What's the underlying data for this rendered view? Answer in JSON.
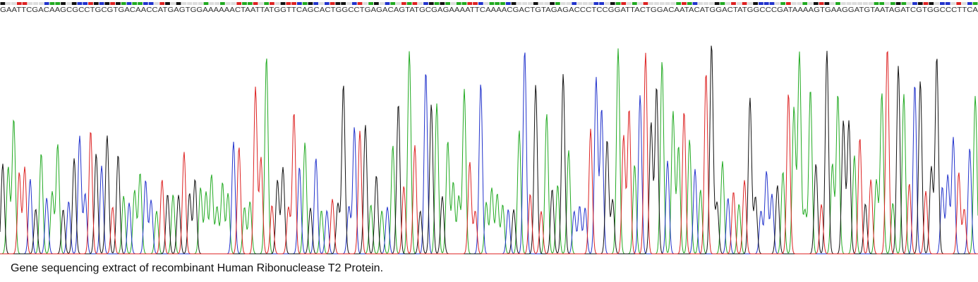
{
  "sequence": "GAATTCGACAAGCGCCTGCGTGACAACCATGAGTGGAAAAAACTAATTATGGTTCAGCACTGGCCTGAGACAGTATGCGAGAAAATTCAAAACGACTGTAGAGACCCTCCGGATTACTGGACAATACATGGACTATGGCCCGATAAAAGTGAAGGATGTAATAGATCGTGGCCCTTCA",
  "caption": "Gene sequencing extract of recombinant Human Ribonuclease T2 Protein."
}
